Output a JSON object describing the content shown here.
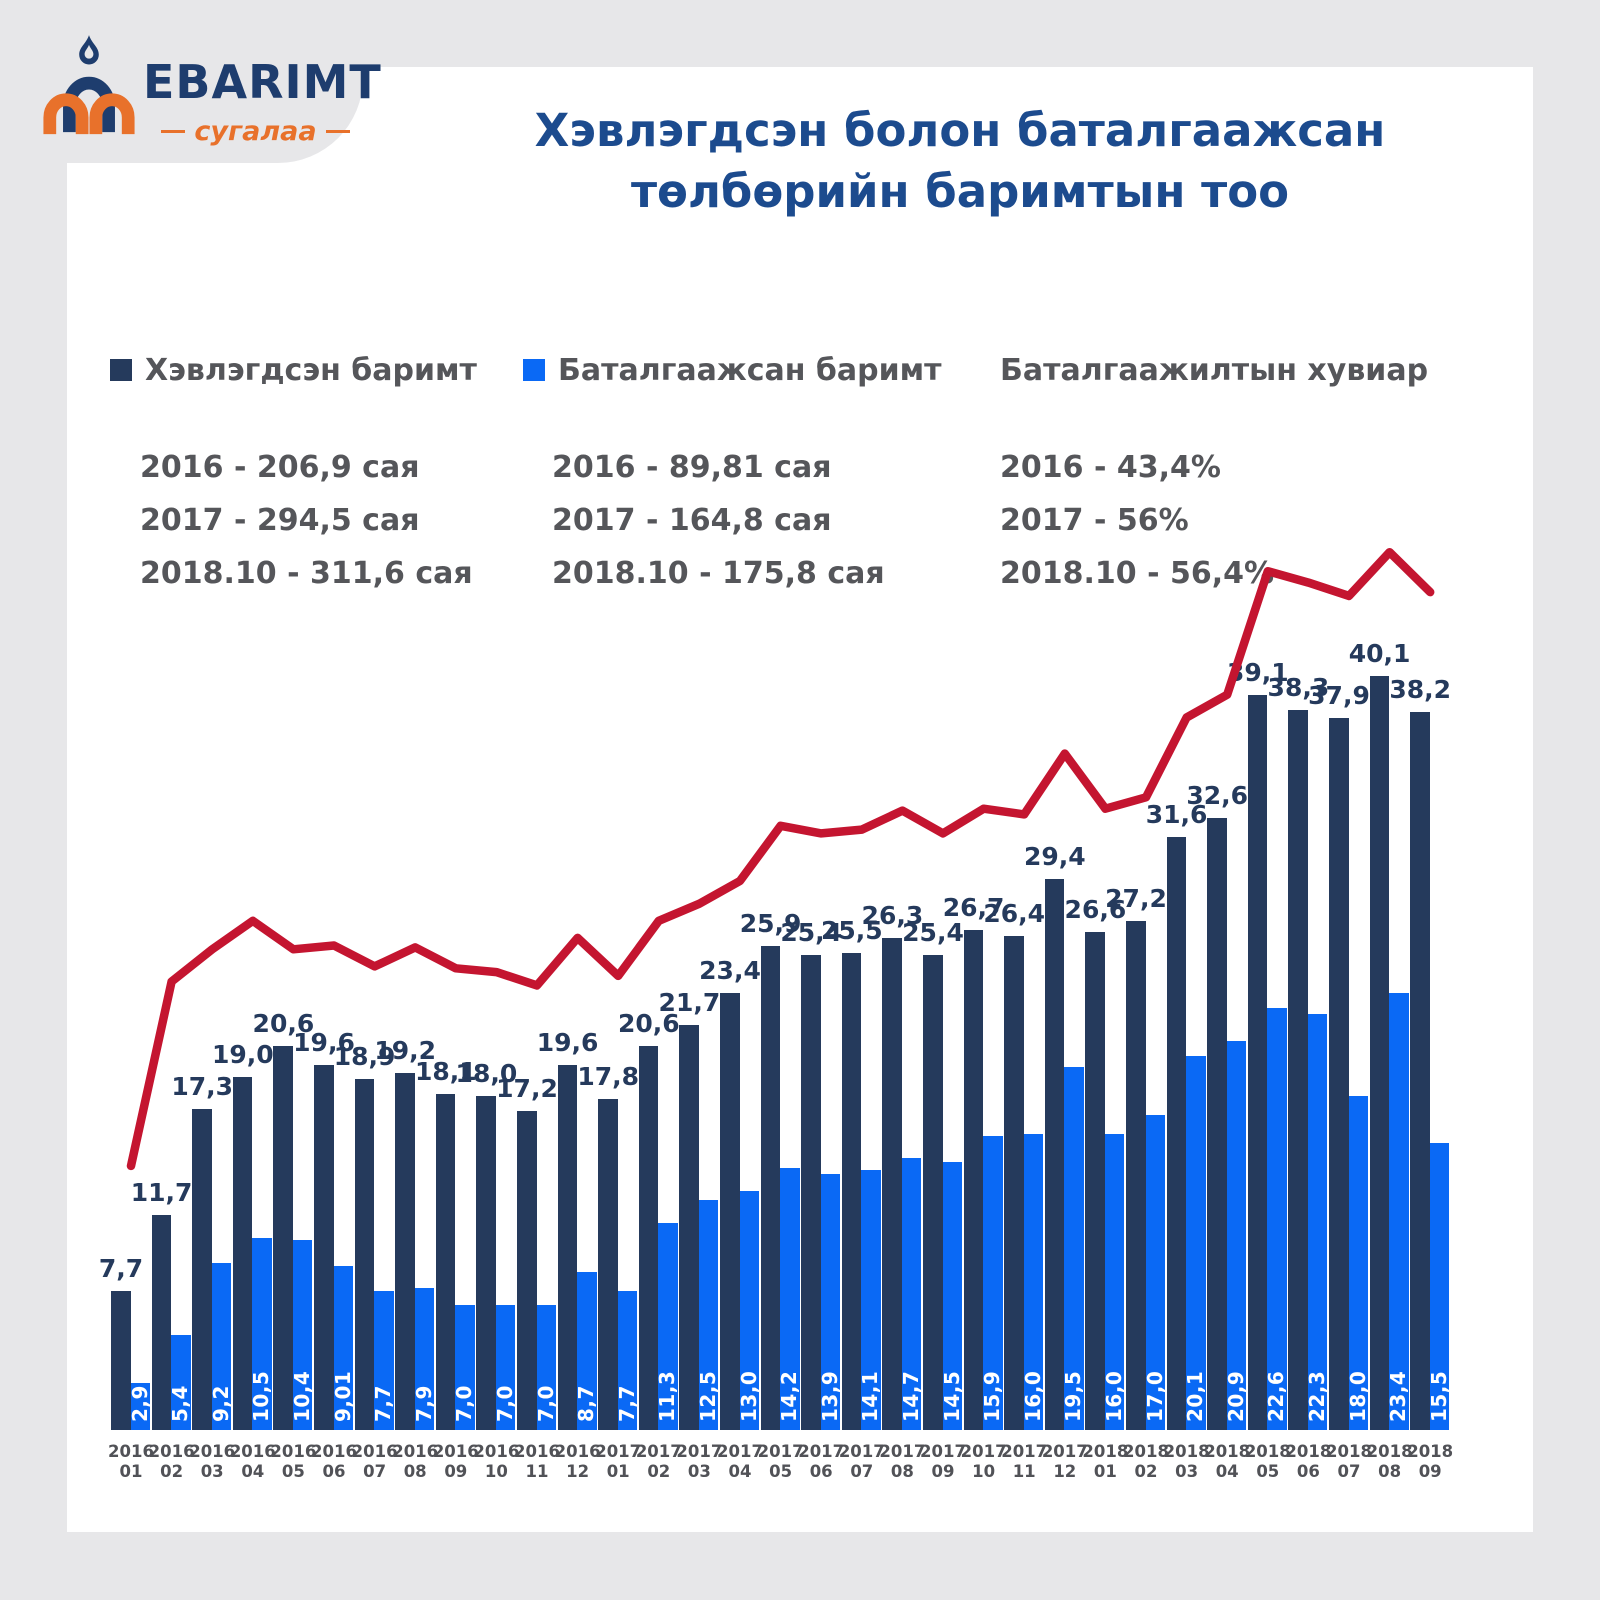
{
  "page": {
    "background": "#e7e7e9",
    "panel_background": "#ffffff"
  },
  "logo": {
    "brand": "EBARIMT",
    "sub": "сугалаа",
    "navy": "#1e3d6e",
    "orange": "#e8712b"
  },
  "title": {
    "line1": "Хэвлэгдсэн болон баталгаажсан",
    "line2": "төлбөрийн баримтын тоо"
  },
  "legend": [
    {
      "label": "Хэвлэгдсэн баримт",
      "swatch": "#253a5c"
    },
    {
      "label": "Баталгаажсан баримт",
      "swatch": "#0a69f5"
    },
    {
      "label": "Баталгаажилтын хувиар",
      "swatch": null
    }
  ],
  "summary": {
    "col1": [
      "2016 - 206,9 сая",
      "2017 - 294,5 сая",
      "2018.10 - 311,6 сая"
    ],
    "col2": [
      "2016 - 89,81 сая",
      "2017 - 164,8 сая",
      "2018.10 - 175,8 сая"
    ],
    "col3": [
      "2016 - 43,4%",
      "2017 - 56%",
      "2018.10 - 56,4%"
    ]
  },
  "chart_data": {
    "type": "bar+line",
    "title": "Хэвлэгдсэн болон баталгаажсан төлбөрийн баримтын тоо",
    "unit_note": "values in millions of receipts (сая); no visible value axis",
    "categories_year": [
      "2016",
      "2016",
      "2016",
      "2016",
      "2016",
      "2016",
      "2016",
      "2016",
      "2016",
      "2016",
      "2016",
      "2016",
      "2017",
      "2017",
      "2017",
      "2017",
      "2017",
      "2017",
      "2017",
      "2017",
      "2017",
      "2017",
      "2017",
      "2017",
      "2018",
      "2018",
      "2018",
      "2018",
      "2018",
      "2018",
      "2018",
      "2018",
      "2018"
    ],
    "categories_month": [
      "01",
      "02",
      "03",
      "04",
      "05",
      "06",
      "07",
      "08",
      "09",
      "10",
      "11",
      "12",
      "01",
      "02",
      "03",
      "04",
      "05",
      "06",
      "07",
      "08",
      "09",
      "10",
      "11",
      "12",
      "01",
      "02",
      "03",
      "04",
      "05",
      "06",
      "07",
      "08",
      "09"
    ],
    "series": [
      {
        "name": "Хэвлэгдсэн баримт",
        "type": "bar",
        "color": "#253a5c",
        "labels": [
          "7,7",
          "11,7",
          "17,3",
          "19,0",
          "20,6",
          "19,6",
          "18,9",
          "19,2",
          "18,1",
          "18,0",
          "17,2",
          "19,6",
          "17,8",
          "20,6",
          "21,7",
          "23,4",
          "25,9",
          "25,4",
          "25,5",
          "26,3",
          "25,4",
          "26,7",
          "26,4",
          "29,4",
          "26,6",
          "27,2",
          "31,6",
          "32,6",
          "39,1",
          "38,3",
          "37,9",
          "40,1",
          "38,2"
        ]
      },
      {
        "name": "Баталгаажсан баримт",
        "type": "bar",
        "color": "#0a69f5",
        "labels": [
          "2,9",
          "5,4",
          "9,2",
          "10,5",
          "10,4",
          "9,01",
          "7,7",
          "7,9",
          "7,0",
          "7,0",
          "7,0",
          "8,7",
          "7,7",
          "11,3",
          "12,5",
          "13,0",
          "14,2",
          "13,9",
          "14,1",
          "14,7",
          "14,5",
          "15,9",
          "16,0",
          "19,5",
          "16,0",
          "17,0",
          "20,1",
          "20,9",
          "22,6",
          "22,3",
          "18,0",
          "23,4",
          "15,5"
        ]
      },
      {
        "name": "Баталгаажилтын хувиар",
        "type": "line",
        "color": "#c41530",
        "axis_note": "percentage trend drawn on hidden scale; estimated heights in bar-axis units",
        "values_est": [
          14.3,
          24.0,
          25.7,
          27.2,
          25.7,
          25.9,
          24.8,
          25.8,
          24.7,
          24.5,
          23.8,
          26.3,
          24.3,
          27.2,
          28.1,
          29.3,
          32.2,
          31.8,
          32.0,
          33.0,
          31.8,
          33.1,
          32.8,
          36.0,
          33.1,
          33.7,
          37.9,
          39.1,
          45.6,
          45.0,
          44.3,
          46.6,
          44.5
        ],
        "yearly_percent": {
          "2016": "43,4%",
          "2017": "56%",
          "2018.10": "56,4%"
        }
      }
    ],
    "legend_position": "top-left above summary",
    "grid": false
  }
}
